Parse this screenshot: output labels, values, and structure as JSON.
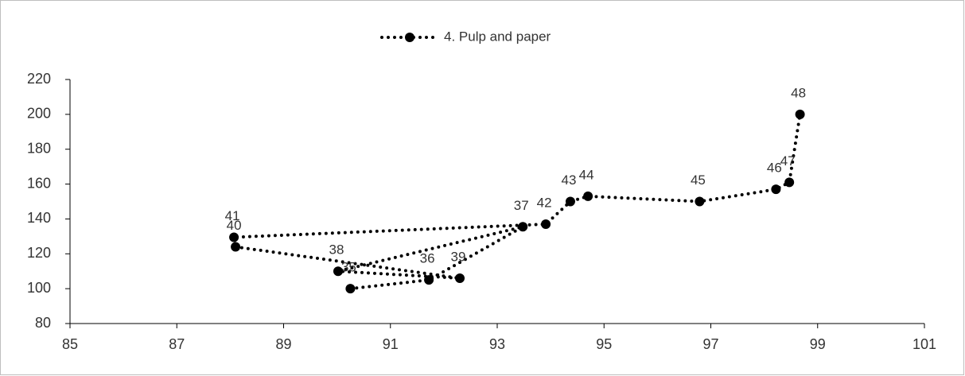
{
  "chart_data": {
    "type": "scatter-line",
    "series": [
      {
        "name": "4. Pulp and paper",
        "color": "#000000",
        "x": [
          90.25,
          91.72,
          93.48,
          90.02,
          92.3,
          88.1,
          88.07,
          93.91,
          94.37,
          94.7,
          96.79,
          98.22,
          98.47,
          98.67
        ],
        "values": [
          100,
          105,
          135.5,
          110,
          106,
          124,
          129.5,
          137,
          150,
          153,
          150,
          157,
          161,
          200
        ],
        "point_labels": [
          "35",
          "36",
          "37",
          "38",
          "39",
          "40",
          "41",
          "42",
          "43",
          "44",
          "45",
          "46",
          "47",
          "48"
        ]
      }
    ],
    "xlim": [
      85,
      101
    ],
    "xticks": [
      85,
      87,
      89,
      91,
      93,
      95,
      97,
      99,
      101
    ],
    "ylim": [
      80,
      220
    ],
    "yticks": [
      80,
      100,
      120,
      140,
      160,
      180,
      200,
      220
    ],
    "legend": "top"
  }
}
